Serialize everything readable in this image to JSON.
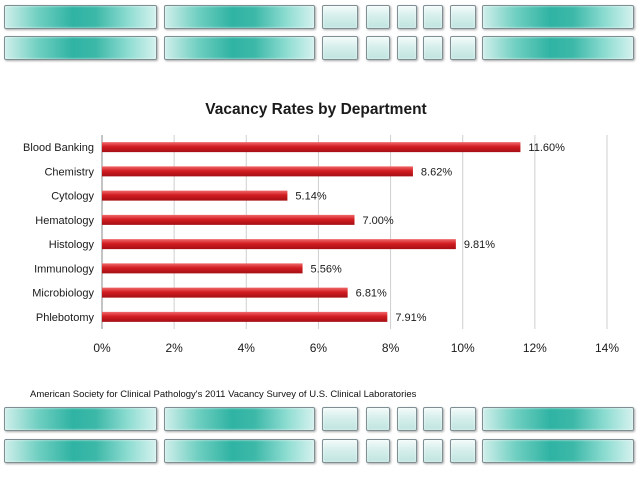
{
  "chart_data": {
    "type": "bar",
    "orientation": "horizontal",
    "title": "Vacancy Rates by Department",
    "categories": [
      "Blood Banking",
      "Chemistry",
      "Cytology",
      "Hematology",
      "Histology",
      "Immunology",
      "Microbiology",
      "Phlebotomy"
    ],
    "values": [
      11.6,
      8.62,
      5.14,
      7.0,
      9.81,
      5.56,
      6.81,
      7.91
    ],
    "data_labels": [
      "11.60%",
      "8.62%",
      "5.14%",
      "7.00%",
      "9.81%",
      "5.56%",
      "6.81%",
      "7.91%"
    ],
    "xlim": [
      0,
      14
    ],
    "x_ticks": [
      "0%",
      "2%",
      "4%",
      "6%",
      "8%",
      "10%",
      "12%",
      "14%"
    ],
    "grid": true,
    "legend": "none",
    "bar_color": "#c8191e"
  },
  "source_note": "American Society for Clinical Pathology's 2011 Vacancy Survey of U.S. Clinical Laboratories"
}
